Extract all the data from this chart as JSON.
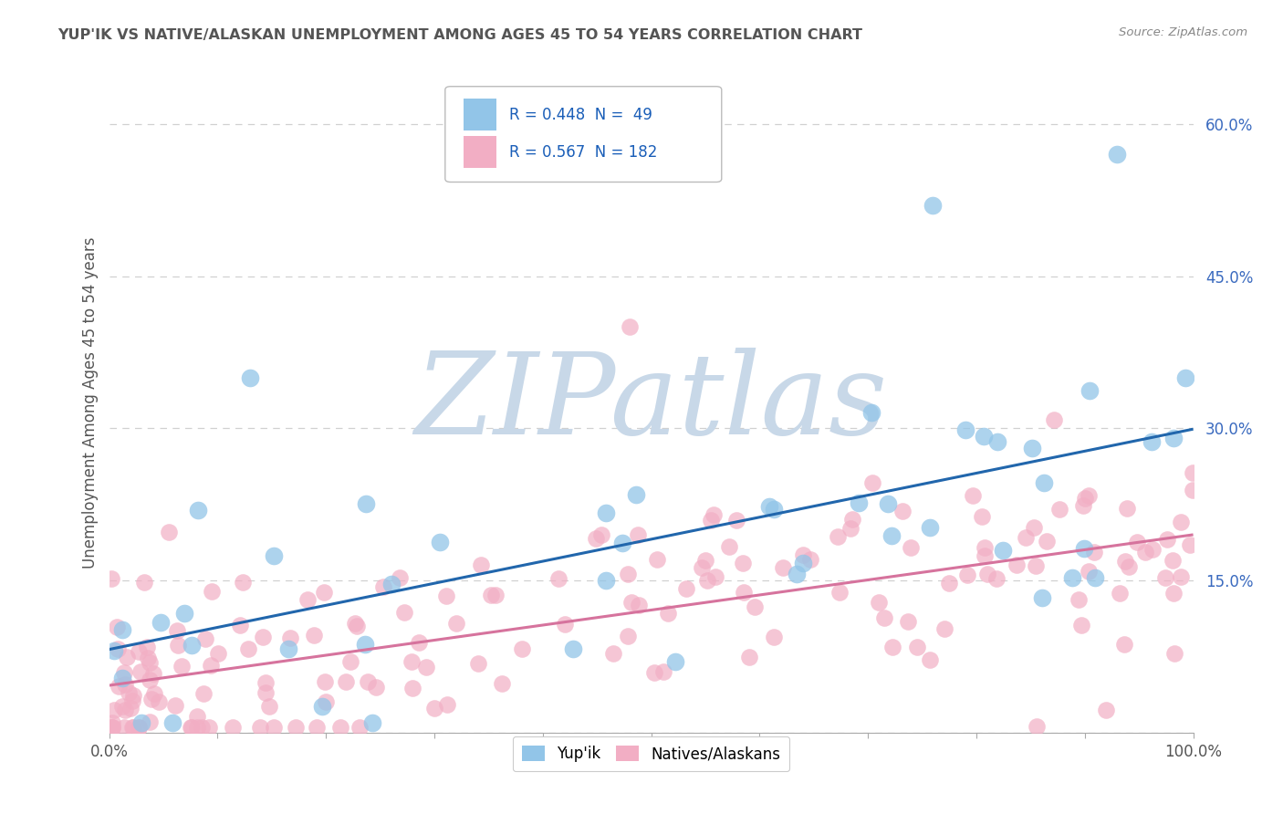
{
  "title": "YUP'IK VS NATIVE/ALASKAN UNEMPLOYMENT AMONG AGES 45 TO 54 YEARS CORRELATION CHART",
  "source": "Source: ZipAtlas.com",
  "ylabel": "Unemployment Among Ages 45 to 54 years",
  "xlim": [
    0,
    1.0
  ],
  "ylim": [
    0,
    0.65
  ],
  "xtick_labels": [
    "0.0%",
    "",
    "",
    "",
    "",
    "",
    "",
    "",
    "",
    "",
    "100.0%"
  ],
  "ytick_labels": [
    "",
    "15.0%",
    "30.0%",
    "45.0%",
    "60.0%"
  ],
  "yup_ik_color": "#92c5e8",
  "native_color": "#f2aec4",
  "yup_ik_line_color": "#2166ac",
  "native_line_color": "#d6739d",
  "R_yupik": 0.448,
  "N_yupik": 49,
  "R_native": 0.567,
  "N_native": 182,
  "legend_R_N_color": "#1a5eb8",
  "watermark_text": "ZIPatlas",
  "watermark_color": "#c8d8e8",
  "background_color": "#ffffff",
  "grid_color": "#d0d0d0",
  "title_color": "#555555",
  "source_color": "#888888",
  "ylabel_color": "#555555"
}
